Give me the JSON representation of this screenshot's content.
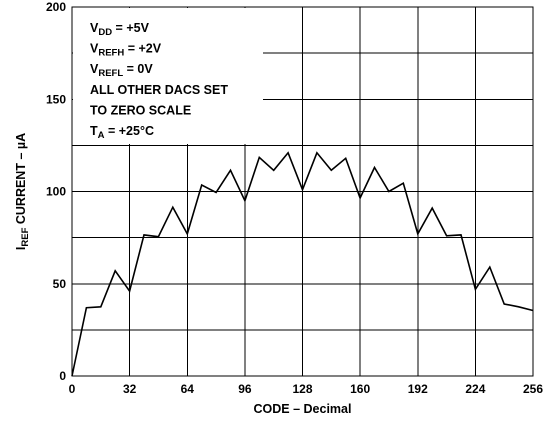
{
  "chart_data": {
    "type": "line",
    "xlabel": "CODE – Decimal",
    "ylabel_main": "I",
    "ylabel_sub": "REF",
    "ylabel_rest": " CURRENT – µA",
    "xlim": [
      0,
      256
    ],
    "ylim": [
      0,
      200
    ],
    "x_ticks": [
      0,
      32,
      64,
      96,
      128,
      160,
      192,
      224,
      256
    ],
    "y_ticks": [
      0,
      50,
      100,
      150,
      200
    ],
    "x_tick_labels": [
      "0",
      "32",
      "64",
      "96",
      "128",
      "160",
      "192",
      "224",
      "256"
    ],
    "y_tick_labels": [
      "0",
      "50",
      "100",
      "150",
      "200"
    ],
    "grid": true,
    "annotation_lines": [
      {
        "main": "V",
        "sub": "DD",
        "rest": " = +5V"
      },
      {
        "main": "V",
        "sub": "REFH",
        "rest": " = +2V"
      },
      {
        "main": "V",
        "sub": "REFL",
        "rest": " = 0V"
      },
      {
        "main": "ALL OTHER DACS SET",
        "sub": "",
        "rest": ""
      },
      {
        "main": "TO ZERO SCALE",
        "sub": "",
        "rest": ""
      },
      {
        "main": "T",
        "sub": "A",
        "rest": " = +25°C"
      }
    ],
    "series": [
      {
        "x": [
          0,
          8,
          16,
          24,
          32,
          40,
          48,
          56,
          64,
          72,
          80,
          88,
          96,
          104,
          112,
          120,
          128,
          136,
          144,
          152,
          160,
          168,
          176,
          184,
          192,
          200,
          208,
          216,
          224,
          232,
          240,
          248,
          256
        ],
        "y": [
          0,
          37,
          37.5,
          57,
          46,
          76.5,
          75.5,
          91.5,
          77,
          103.5,
          99.5,
          111.5,
          95,
          118.5,
          111.5,
          121,
          101,
          121,
          111.5,
          118,
          96.5,
          113,
          100,
          104.5,
          77,
          91,
          76,
          76.5,
          47,
          59,
          39,
          37.5,
          35.5
        ]
      }
    ]
  }
}
